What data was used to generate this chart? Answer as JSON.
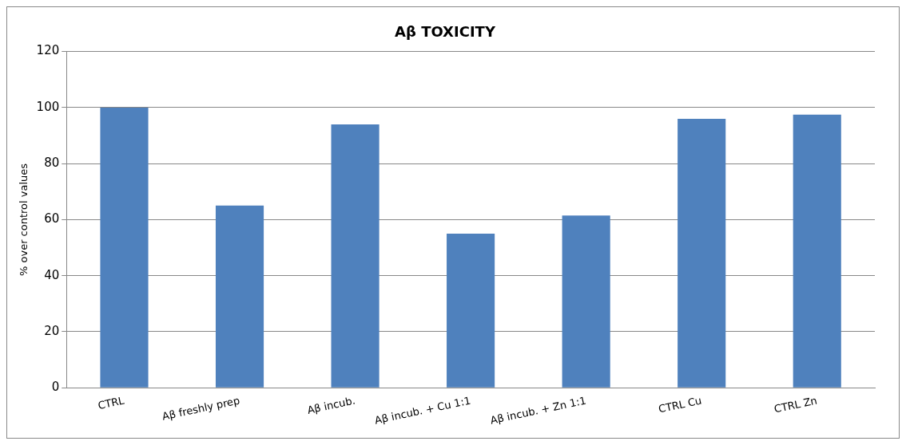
{
  "chart_data": {
    "type": "bar",
    "title": "Aβ TOXICITY",
    "ylabel": "% over control values",
    "categories": [
      "CTRL",
      "Aβ freshly prep",
      "Aβ incub.",
      "Aβ incub. + Cu 1:1",
      "Aβ incub. + Zn 1:1",
      "CTRL Cu",
      "CTRL Zn"
    ],
    "values": [
      100,
      65,
      94,
      55,
      61.5,
      96,
      97.5
    ],
    "color": "#4f81bd",
    "ylim": [
      0,
      120
    ],
    "yticks": [
      0,
      20,
      40,
      60,
      80,
      100,
      120
    ],
    "grid": "y",
    "legend": false
  }
}
